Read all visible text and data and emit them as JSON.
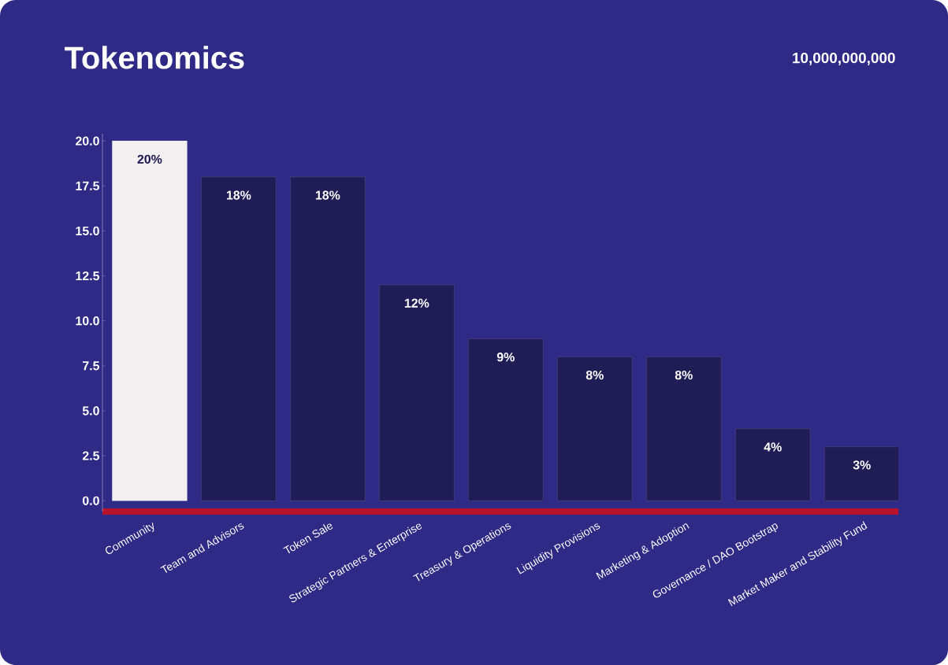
{
  "chart_data": {
    "type": "bar",
    "title": "Tokenomics",
    "subtitle": "10,000,000,000",
    "categories": [
      "Community",
      "Team and Advisors",
      "Token Sale",
      "Strategic Partners & Enterprise",
      "Treasury & Operations",
      "Liquidity Provisions",
      "Marketing & Adoption",
      "Governance / DAO Bootstrap",
      "Market Maker and Stability Fund"
    ],
    "values": [
      20,
      18,
      18,
      12,
      9,
      8,
      8,
      4,
      3
    ],
    "value_labels": [
      "20%",
      "18%",
      "18%",
      "12%",
      "9%",
      "8%",
      "8%",
      "4%",
      "3%"
    ],
    "colors": [
      "#f4f0f2",
      "#1f1d55",
      "#1f1d55",
      "#1f1d55",
      "#1f1d55",
      "#1f1d55",
      "#1f1d55",
      "#1f1d55",
      "#1f1d55"
    ],
    "ylim": [
      -0.6,
      20.4
    ],
    "yticks": [
      {
        "value": 0,
        "label": "0.0"
      },
      {
        "value": 2.5,
        "label": "2.5"
      },
      {
        "value": 5,
        "label": "5.0"
      },
      {
        "value": 7.5,
        "label": "7.5"
      },
      {
        "value": 10,
        "label": "10.0"
      },
      {
        "value": 12.5,
        "label": "12.5"
      },
      {
        "value": 15,
        "label": "15.0"
      },
      {
        "value": 17.5,
        "label": "17.5"
      },
      {
        "value": 20,
        "label": "20.0"
      }
    ],
    "grid": false
  }
}
